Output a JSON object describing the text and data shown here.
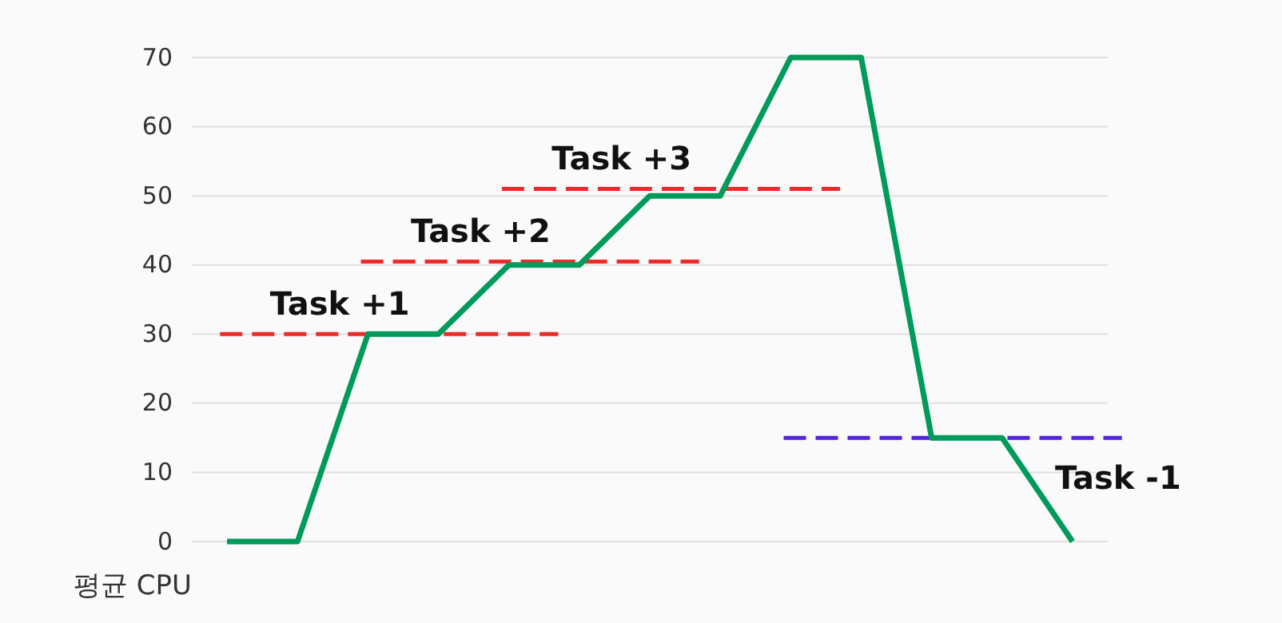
{
  "chart_data": {
    "type": "line",
    "ylabel": "평균 CPU",
    "categories": [
      null,
      null,
      null,
      null,
      null,
      null,
      null,
      null,
      null,
      null,
      null,
      null,
      null
    ],
    "ylim": [
      0,
      70
    ],
    "yticks": [
      0,
      10,
      20,
      30,
      40,
      50,
      60,
      70
    ],
    "grid": "y",
    "tick_labels": "y",
    "series": [
      {
        "color": "#009a5a",
        "values": [
          0,
          0,
          30,
          30,
          40,
          40,
          50,
          50,
          70,
          70,
          15,
          15,
          0
        ]
      }
    ],
    "ref_lines": [
      {
        "axis": "y",
        "value": 30,
        "label": "Task +1",
        "color": "#ee2a2a",
        "line_style": "dashed"
      },
      {
        "axis": "y",
        "value": 40.5,
        "label": "Task +2",
        "color": "#ee2a2a",
        "line_style": "dashed"
      },
      {
        "axis": "y",
        "value": 51,
        "label": "Task +3",
        "color": "#ee2a2a",
        "line_style": "dashed"
      },
      {
        "axis": "y",
        "value": 15,
        "label": "Task -1",
        "color": "#5522dd",
        "line_style": "dashed"
      }
    ]
  }
}
